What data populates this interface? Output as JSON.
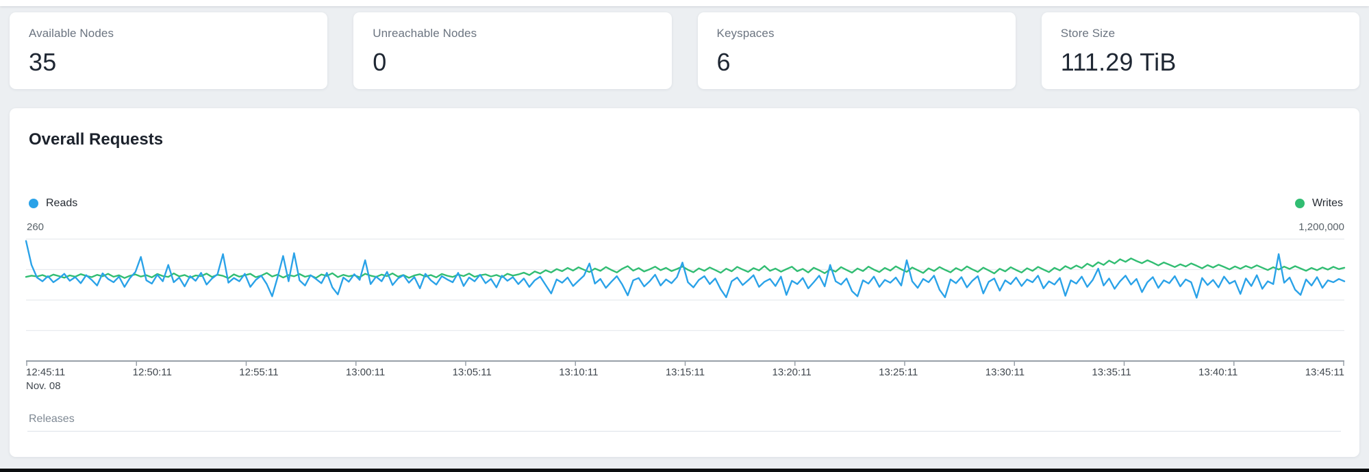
{
  "stats": [
    {
      "label": "Available Nodes",
      "value": "35"
    },
    {
      "label": "Unreachable Nodes",
      "value": "0"
    },
    {
      "label": "Keyspaces",
      "value": "6"
    },
    {
      "label": "Store Size",
      "value": "111.29 TiB"
    }
  ],
  "chart": {
    "title": "Overall Requests",
    "left_axis_max_label": "260",
    "right_axis_max_label": "1,200,000",
    "date_label": "Nov. 08",
    "releases_label": "Releases"
  },
  "colors": {
    "reads": "#2aa2e8",
    "writes": "#31bd72",
    "background": "#eceff2",
    "gridline": "#e8ebee",
    "axis": "#98a0a8"
  },
  "chart_data": {
    "type": "line",
    "title": "Overall Requests",
    "xlabel": "",
    "ylabel": "",
    "grid": true,
    "legend_position": "top",
    "x_ticks": [
      "12:45:11",
      "12:50:11",
      "12:55:11",
      "13:00:11",
      "13:05:11",
      "13:10:11",
      "13:15:11",
      "13:20:11",
      "13:25:11",
      "13:30:11",
      "13:35:11",
      "13:40:11",
      "13:45:11"
    ],
    "x_date": "Nov. 08",
    "left_ylim": [
      0,
      260
    ],
    "right_ylim": [
      0,
      1200000
    ],
    "series": [
      {
        "name": "Writes",
        "color": "#31bd72",
        "axis": "right",
        "axis_max": 1200000,
        "values": [
          828000,
          840000,
          832000,
          846000,
          825000,
          851000,
          836000,
          820000,
          843000,
          830000,
          855000,
          838000,
          826000,
          848000,
          834000,
          858000,
          829000,
          844000,
          817000,
          839000,
          852000,
          831000,
          845000,
          823000,
          857000,
          836000,
          828000,
          862000,
          833000,
          847000,
          821000,
          842000,
          835000,
          860000,
          827000,
          849000,
          838000,
          815000,
          853000,
          830000,
          844000,
          858000,
          825000,
          841000,
          867000,
          832000,
          850000,
          822000,
          846000,
          834000,
          856000,
          829000,
          843000,
          818000,
          852000,
          837000,
          864000,
          826000,
          848000,
          833000,
          845000,
          824000,
          859000,
          840000,
          828000,
          851000,
          835000,
          862000,
          830000,
          847000,
          819000,
          842000,
          854000,
          831000,
          846000,
          823000,
          857000,
          839000,
          827000,
          850000,
          836000,
          861000,
          829000,
          844000,
          853000,
          832000,
          847000,
          825000,
          858000,
          841000,
          852000,
          870000,
          846000,
          882000,
          861000,
          893000,
          872000,
          905000,
          884000,
          916000,
          890000,
          922000,
          898000,
          876000,
          910000,
          887000,
          925000,
          896000,
          872000,
          908000,
          934000,
          889000,
          915000,
          881000,
          903000,
          928000,
          894000,
          917000,
          885000,
          906000,
          930000,
          898000,
          874000,
          912000,
          888000,
          921000,
          895000,
          868000,
          909000,
          883000,
          926000,
          901000,
          877000,
          914000,
          892000,
          935000,
          887000,
          910000,
          879000,
          904000,
          928000,
          884000,
          907000,
          872000,
          918000,
          893000,
          864000,
          902000,
          880000,
          924000,
          896000,
          870000,
          911000,
          885000,
          929000,
          899000,
          876000,
          916000,
          890000,
          932000,
          903000,
          878000,
          920000,
          894000,
          867000,
          912000,
          886000,
          925000,
          897000,
          873000,
          915000,
          889000,
          931000,
          902000,
          877000,
          919000,
          891000,
          862000,
          908000,
          882000,
          923000,
          896000,
          871000,
          913000,
          887000,
          926000,
          900000,
          875000,
          917000,
          892000,
          934000,
          908000,
          940000,
          915000,
          958000,
          930000,
          972000,
          946000,
          988000,
          960000,
          1002000,
          976000,
          1010000,
          984000,
          963000,
          992000,
          968000,
          941000,
          970000,
          948000,
          925000,
          952000,
          930000,
          961000,
          938000,
          912000,
          944000,
          920000,
          948000,
          926000,
          902000,
          931000,
          908000,
          936000,
          914000,
          942000,
          918000,
          895000,
          923000,
          901000,
          929000,
          906000,
          934000,
          911000,
          888000,
          916000,
          894000,
          921000,
          899000,
          927000,
          905000,
          918000
        ]
      },
      {
        "name": "Reads",
        "color": "#2aa2e8",
        "axis": "left",
        "axis_max": 260,
        "values": [
          256,
          205,
          178,
          170,
          181,
          168,
          176,
          186,
          171,
          179,
          166,
          183,
          173,
          161,
          187,
          175,
          168,
          180,
          158,
          177,
          190,
          222,
          172,
          165,
          184,
          170,
          205,
          168,
          178,
          159,
          181,
          171,
          188,
          163,
          176,
          185,
          228,
          167,
          177,
          170,
          186,
          158,
          173,
          182,
          164,
          138,
          179,
          224,
          170,
          230,
          172,
          161,
          183,
          175,
          166,
          188,
          157,
          142,
          178,
          169,
          185,
          173,
          215,
          164,
          180,
          170,
          190,
          162,
          176,
          183,
          167,
          179,
          155,
          186,
          172,
          163,
          181,
          174,
          168,
          188,
          160,
          178,
          170,
          184,
          166,
          175,
          157,
          182,
          171,
          179,
          164,
          176,
          158,
          172,
          180,
          162,
          144,
          174,
          167,
          178,
          160,
          171,
          182,
          208,
          165,
          175,
          156,
          169,
          181,
          163,
          140,
          172,
          177,
          159,
          170,
          184,
          161,
          174,
          166,
          179,
          210,
          168,
          157,
          173,
          181,
          164,
          176,
          153,
          136,
          170,
          178,
          162,
          172,
          183,
          158,
          169,
          175,
          160,
          180,
          141,
          171,
          164,
          177,
          155,
          168,
          182,
          159,
          205,
          170,
          163,
          176,
          149,
          138,
          172,
          165,
          180,
          158,
          173,
          167,
          178,
          161,
          215,
          170,
          156,
          175,
          168,
          182,
          152,
          136,
          174,
          166,
          179,
          157,
          171,
          181,
          144,
          169,
          176,
          150,
          172,
          164,
          178,
          160,
          174,
          168,
          182,
          155,
          170,
          163,
          177,
          139,
          172,
          165,
          180,
          158,
          173,
          197,
          161,
          176,
          154,
          170,
          182,
          163,
          175,
          147,
          168,
          179,
          156,
          172,
          166,
          181,
          159,
          174,
          168,
          135,
          177,
          162,
          173,
          157,
          180,
          165,
          171,
          143,
          176,
          160,
          183,
          154,
          170,
          164,
          228,
          167,
          178,
          152,
          141,
          174,
          161,
          179,
          156,
          172,
          168,
          175,
          170
        ]
      }
    ]
  }
}
